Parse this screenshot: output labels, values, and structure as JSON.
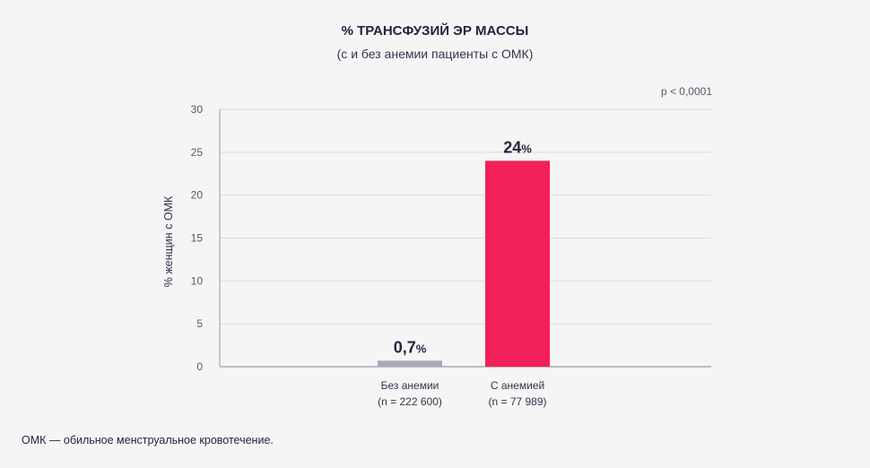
{
  "colors": {
    "bar_no_anemia": "#a9a8b8",
    "bar_anemia": "#f31f58",
    "grid": "#dcdce2",
    "axis": "#9a9aa8"
  },
  "p_value": "p < 0,0001",
  "footnote": "ОМК — обильное менструальное кровотечение.",
  "chart_data": {
    "type": "bar",
    "title": "% ТРАНСФУЗИЙ ЭР МАССЫ",
    "subtitle": "(с и без анемии пациенты с ОМК)",
    "xlabel": "",
    "ylabel": "% женщин с ОМК",
    "ylim": [
      0,
      30
    ],
    "yticks": [
      0,
      5,
      10,
      15,
      20,
      25,
      30
    ],
    "grid": true,
    "categories": [
      {
        "line1": "Без анемии",
        "line2": "(n = 222 600)"
      },
      {
        "line1": "С анемией",
        "line2": "(n = 77 989)"
      }
    ],
    "values": [
      0.7,
      24
    ],
    "value_labels": [
      {
        "num": "0,7",
        "unit": "%"
      },
      {
        "num": "24",
        "unit": "%"
      }
    ]
  }
}
